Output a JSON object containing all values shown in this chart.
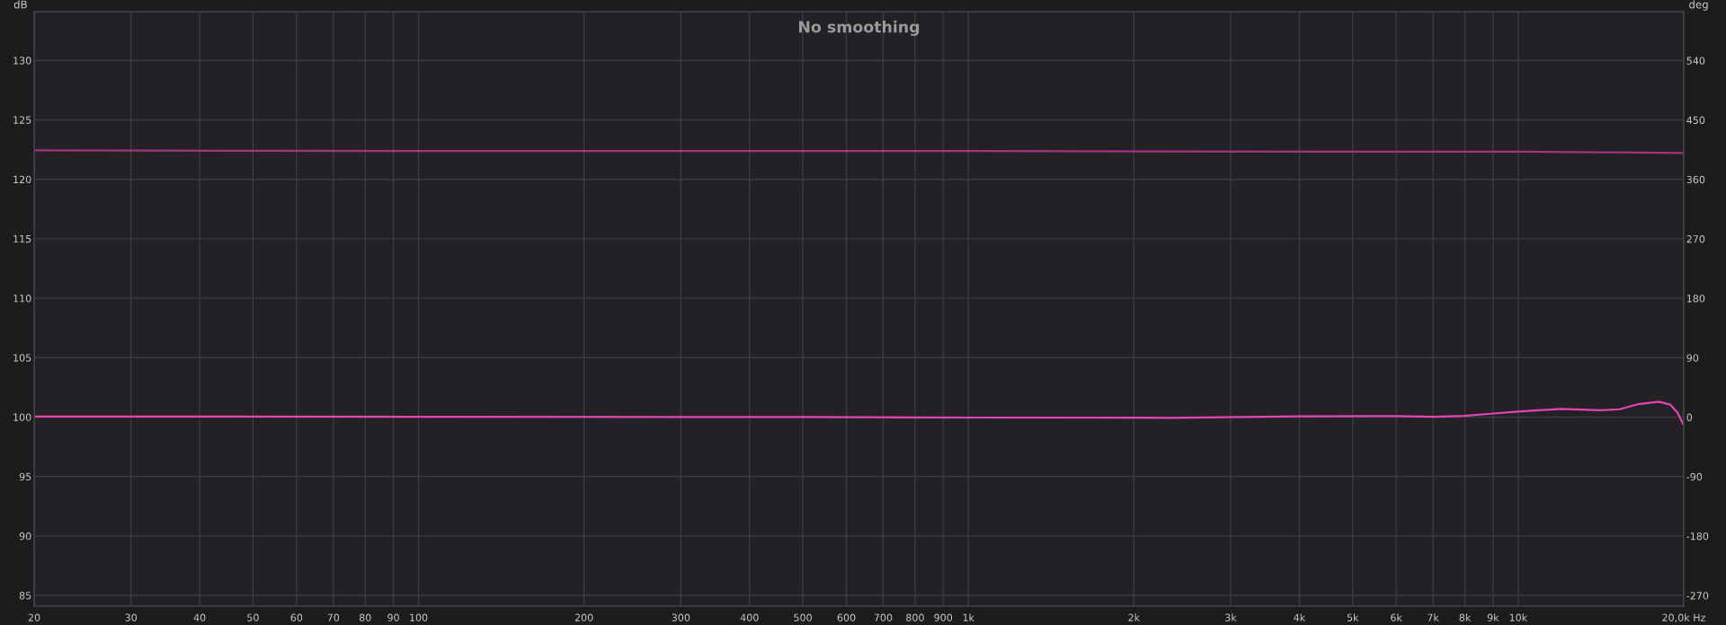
{
  "chart_data": {
    "type": "line",
    "title": "No smoothing",
    "ylabel": "dB",
    "y2label": "deg",
    "log": "x",
    "grid": true,
    "xlim": [
      20,
      20000
    ],
    "ylim": [
      84.1,
      134.1
    ],
    "y2lim": [
      -286,
      614
    ],
    "xticks": [
      20,
      30,
      40,
      50,
      60,
      70,
      80,
      90,
      100,
      200,
      300,
      400,
      500,
      600,
      700,
      800,
      900,
      {
        "value": 1000,
        "label": "1k"
      },
      {
        "value": 2000,
        "label": "2k"
      },
      {
        "value": 3000,
        "label": "3k"
      },
      {
        "value": 4000,
        "label": "4k"
      },
      {
        "value": 5000,
        "label": "5k"
      },
      {
        "value": 6000,
        "label": "6k"
      },
      {
        "value": 7000,
        "label": "7k"
      },
      {
        "value": 8000,
        "label": "8k"
      },
      {
        "value": 9000,
        "label": "9k"
      },
      {
        "value": 10000,
        "label": "10k"
      },
      {
        "value": 20000,
        "label": "20,0k Hz"
      }
    ],
    "yticks": [
      85,
      90,
      95,
      100,
      105,
      110,
      115,
      120,
      125,
      130
    ],
    "y2ticks": [
      -270,
      -180,
      -90,
      0,
      90,
      180,
      270,
      360,
      450,
      540
    ],
    "series": [
      {
        "color": "#a23580",
        "axis": "y2",
        "x": [
          20,
          100,
          1000,
          5000,
          10000,
          15000,
          20000
        ],
        "values": [
          404,
          403,
          403,
          402,
          402,
          401,
          400
        ]
      },
      {
        "color": "#e445b4",
        "x": [
          20,
          100,
          500,
          1000,
          2000,
          2313,
          4020,
          6015,
          7040,
          7980,
          9000,
          10090,
          11980,
          14090,
          15300,
          16600,
          18040,
          18900,
          19500,
          20000
        ],
        "values": [
          100.05,
          100.03,
          100.0,
          99.96,
          99.95,
          99.94,
          100.06,
          100.09,
          100.03,
          100.1,
          100.3,
          100.48,
          100.69,
          100.57,
          100.66,
          101.11,
          101.29,
          101.05,
          100.36,
          99.31
        ]
      }
    ]
  }
}
